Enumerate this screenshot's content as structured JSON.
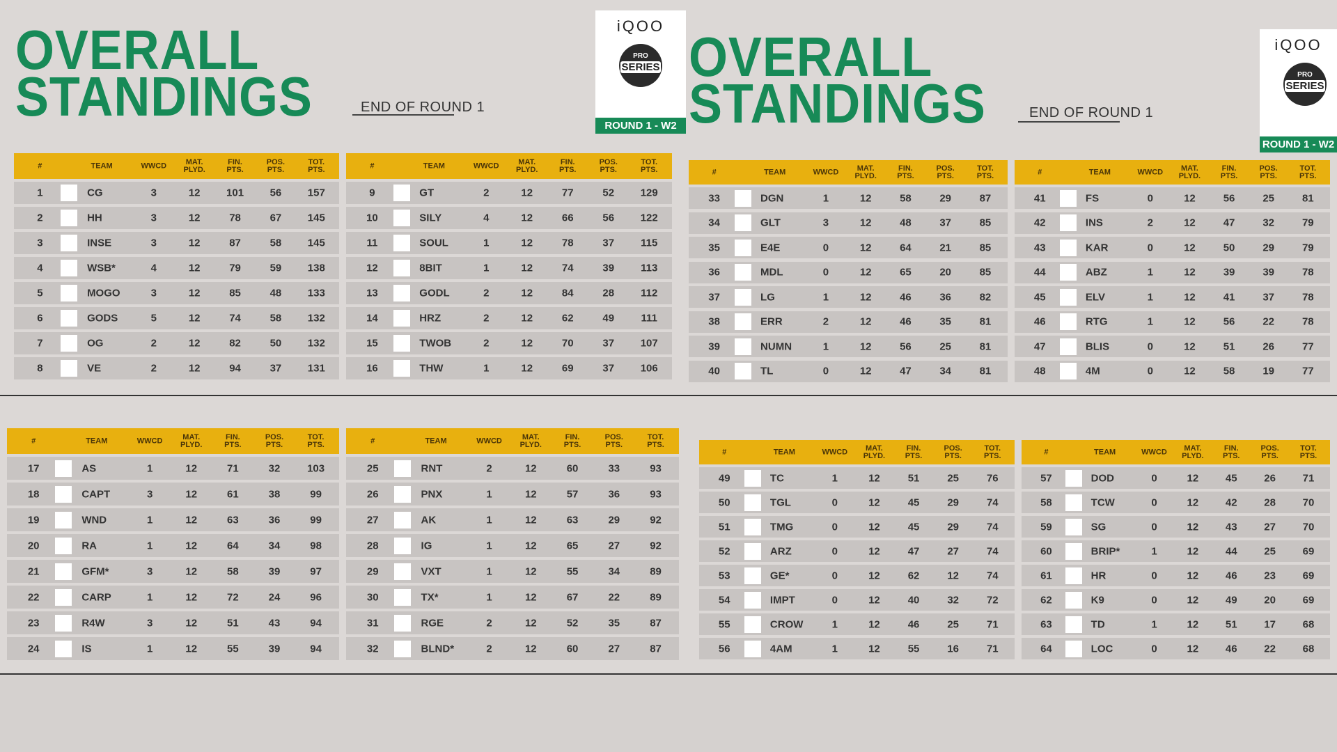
{
  "columns": [
    "#",
    "TEAM",
    "WWCD",
    "MAT.\nPLYD.",
    "FIN.\nPTS.",
    "POS.\nPTS.",
    "TOT.\nPTS."
  ],
  "panels": [
    {
      "header": {
        "title": "OVERALL STANDINGS",
        "subtitle": "END OF ROUND 1",
        "brand": "iQOO",
        "badge_top": "PRO",
        "badge": "SERIES",
        "round": "ROUND 1 - W2"
      },
      "tables": [
        {
          "rows": [
            [
              1,
              "CG",
              3,
              12,
              101,
              56,
              157
            ],
            [
              2,
              "HH",
              3,
              12,
              78,
              67,
              145
            ],
            [
              3,
              "INSE",
              3,
              12,
              87,
              58,
              145
            ],
            [
              4,
              "WSB*",
              4,
              12,
              79,
              59,
              138
            ],
            [
              5,
              "MOGO",
              3,
              12,
              85,
              48,
              133
            ],
            [
              6,
              "GODS",
              5,
              12,
              74,
              58,
              132
            ],
            [
              7,
              "OG",
              2,
              12,
              82,
              50,
              132
            ],
            [
              8,
              "VE",
              2,
              12,
              94,
              37,
              131
            ]
          ]
        },
        {
          "rows": [
            [
              9,
              "GT",
              2,
              12,
              77,
              52,
              129
            ],
            [
              10,
              "SILY",
              4,
              12,
              66,
              56,
              122
            ],
            [
              11,
              "SOUL",
              1,
              12,
              78,
              37,
              115
            ],
            [
              12,
              "8BIT",
              1,
              12,
              74,
              39,
              113
            ],
            [
              13,
              "GODL",
              2,
              12,
              84,
              28,
              112
            ],
            [
              14,
              "HRZ",
              2,
              12,
              62,
              49,
              111
            ],
            [
              15,
              "TWOB",
              2,
              12,
              70,
              37,
              107
            ],
            [
              16,
              "THW",
              1,
              12,
              69,
              37,
              106
            ]
          ]
        }
      ]
    },
    {
      "header": {
        "title": "OVERALL STANDINGS",
        "subtitle": "END OF ROUND 1",
        "brand": "iQOO",
        "badge_top": "PRO",
        "badge": "SERIES",
        "round": "ROUND 1 - W2"
      },
      "tables": [
        {
          "rows": [
            [
              33,
              "DGN",
              1,
              12,
              58,
              29,
              87
            ],
            [
              34,
              "GLT",
              3,
              12,
              48,
              37,
              85
            ],
            [
              35,
              "E4E",
              0,
              12,
              64,
              21,
              85
            ],
            [
              36,
              "MDL",
              0,
              12,
              65,
              20,
              85
            ],
            [
              37,
              "LG",
              1,
              12,
              46,
              36,
              82
            ],
            [
              38,
              "ERR",
              2,
              12,
              46,
              35,
              81
            ],
            [
              39,
              "NUMN",
              1,
              12,
              56,
              25,
              81
            ],
            [
              40,
              "TL",
              0,
              12,
              47,
              34,
              81
            ]
          ]
        },
        {
          "rows": [
            [
              41,
              "FS",
              0,
              12,
              56,
              25,
              81
            ],
            [
              42,
              "INS",
              2,
              12,
              47,
              32,
              79
            ],
            [
              43,
              "KAR",
              0,
              12,
              50,
              29,
              79
            ],
            [
              44,
              "ABZ",
              1,
              12,
              39,
              39,
              78
            ],
            [
              45,
              "ELV",
              1,
              12,
              41,
              37,
              78
            ],
            [
              46,
              "RTG",
              1,
              12,
              56,
              22,
              78
            ],
            [
              47,
              "BLIS",
              0,
              12,
              51,
              26,
              77
            ],
            [
              48,
              "4M",
              0,
              12,
              58,
              19,
              77
            ]
          ]
        }
      ]
    },
    {
      "tables": [
        {
          "rows": [
            [
              17,
              "AS",
              1,
              12,
              71,
              32,
              103
            ],
            [
              18,
              "CAPT",
              3,
              12,
              61,
              38,
              99
            ],
            [
              19,
              "WND",
              1,
              12,
              63,
              36,
              99
            ],
            [
              20,
              "RA",
              1,
              12,
              64,
              34,
              98
            ],
            [
              21,
              "GFM*",
              3,
              12,
              58,
              39,
              97
            ],
            [
              22,
              "CARP",
              1,
              12,
              72,
              24,
              96
            ],
            [
              23,
              "R4W",
              3,
              12,
              51,
              43,
              94
            ],
            [
              24,
              "IS",
              1,
              12,
              55,
              39,
              94
            ]
          ]
        },
        {
          "rows": [
            [
              25,
              "RNT",
              2,
              12,
              60,
              33,
              93
            ],
            [
              26,
              "PNX",
              1,
              12,
              57,
              36,
              93
            ],
            [
              27,
              "AK",
              1,
              12,
              63,
              29,
              92
            ],
            [
              28,
              "IG",
              1,
              12,
              65,
              27,
              92
            ],
            [
              29,
              "VXT",
              1,
              12,
              55,
              34,
              89
            ],
            [
              30,
              "TX*",
              1,
              12,
              67,
              22,
              89
            ],
            [
              31,
              "RGE",
              2,
              12,
              52,
              35,
              87
            ],
            [
              32,
              "BLND*",
              2,
              12,
              60,
              27,
              87
            ]
          ]
        }
      ]
    },
    {
      "tables": [
        {
          "rows": [
            [
              49,
              "TC",
              1,
              12,
              51,
              25,
              76
            ],
            [
              50,
              "TGL",
              0,
              12,
              45,
              29,
              74
            ],
            [
              51,
              "TMG",
              0,
              12,
              45,
              29,
              74
            ],
            [
              52,
              "ARZ",
              0,
              12,
              47,
              27,
              74
            ],
            [
              53,
              "GE*",
              0,
              12,
              62,
              12,
              74
            ],
            [
              54,
              "IMPT",
              0,
              12,
              40,
              32,
              72
            ],
            [
              55,
              "CROW",
              1,
              12,
              46,
              25,
              71
            ],
            [
              56,
              "4AM",
              1,
              12,
              55,
              16,
              71
            ]
          ]
        },
        {
          "rows": [
            [
              57,
              "DOD",
              0,
              12,
              45,
              26,
              71
            ],
            [
              58,
              "TCW",
              0,
              12,
              42,
              28,
              70
            ],
            [
              59,
              "SG",
              0,
              12,
              43,
              27,
              70
            ],
            [
              60,
              "BRIP*",
              1,
              12,
              44,
              25,
              69
            ],
            [
              61,
              "HR",
              0,
              12,
              46,
              23,
              69
            ],
            [
              62,
              "K9",
              0,
              12,
              49,
              20,
              69
            ],
            [
              63,
              "TD",
              1,
              12,
              51,
              17,
              68
            ],
            [
              64,
              "LOC",
              0,
              12,
              46,
              22,
              68
            ]
          ]
        }
      ]
    }
  ]
}
